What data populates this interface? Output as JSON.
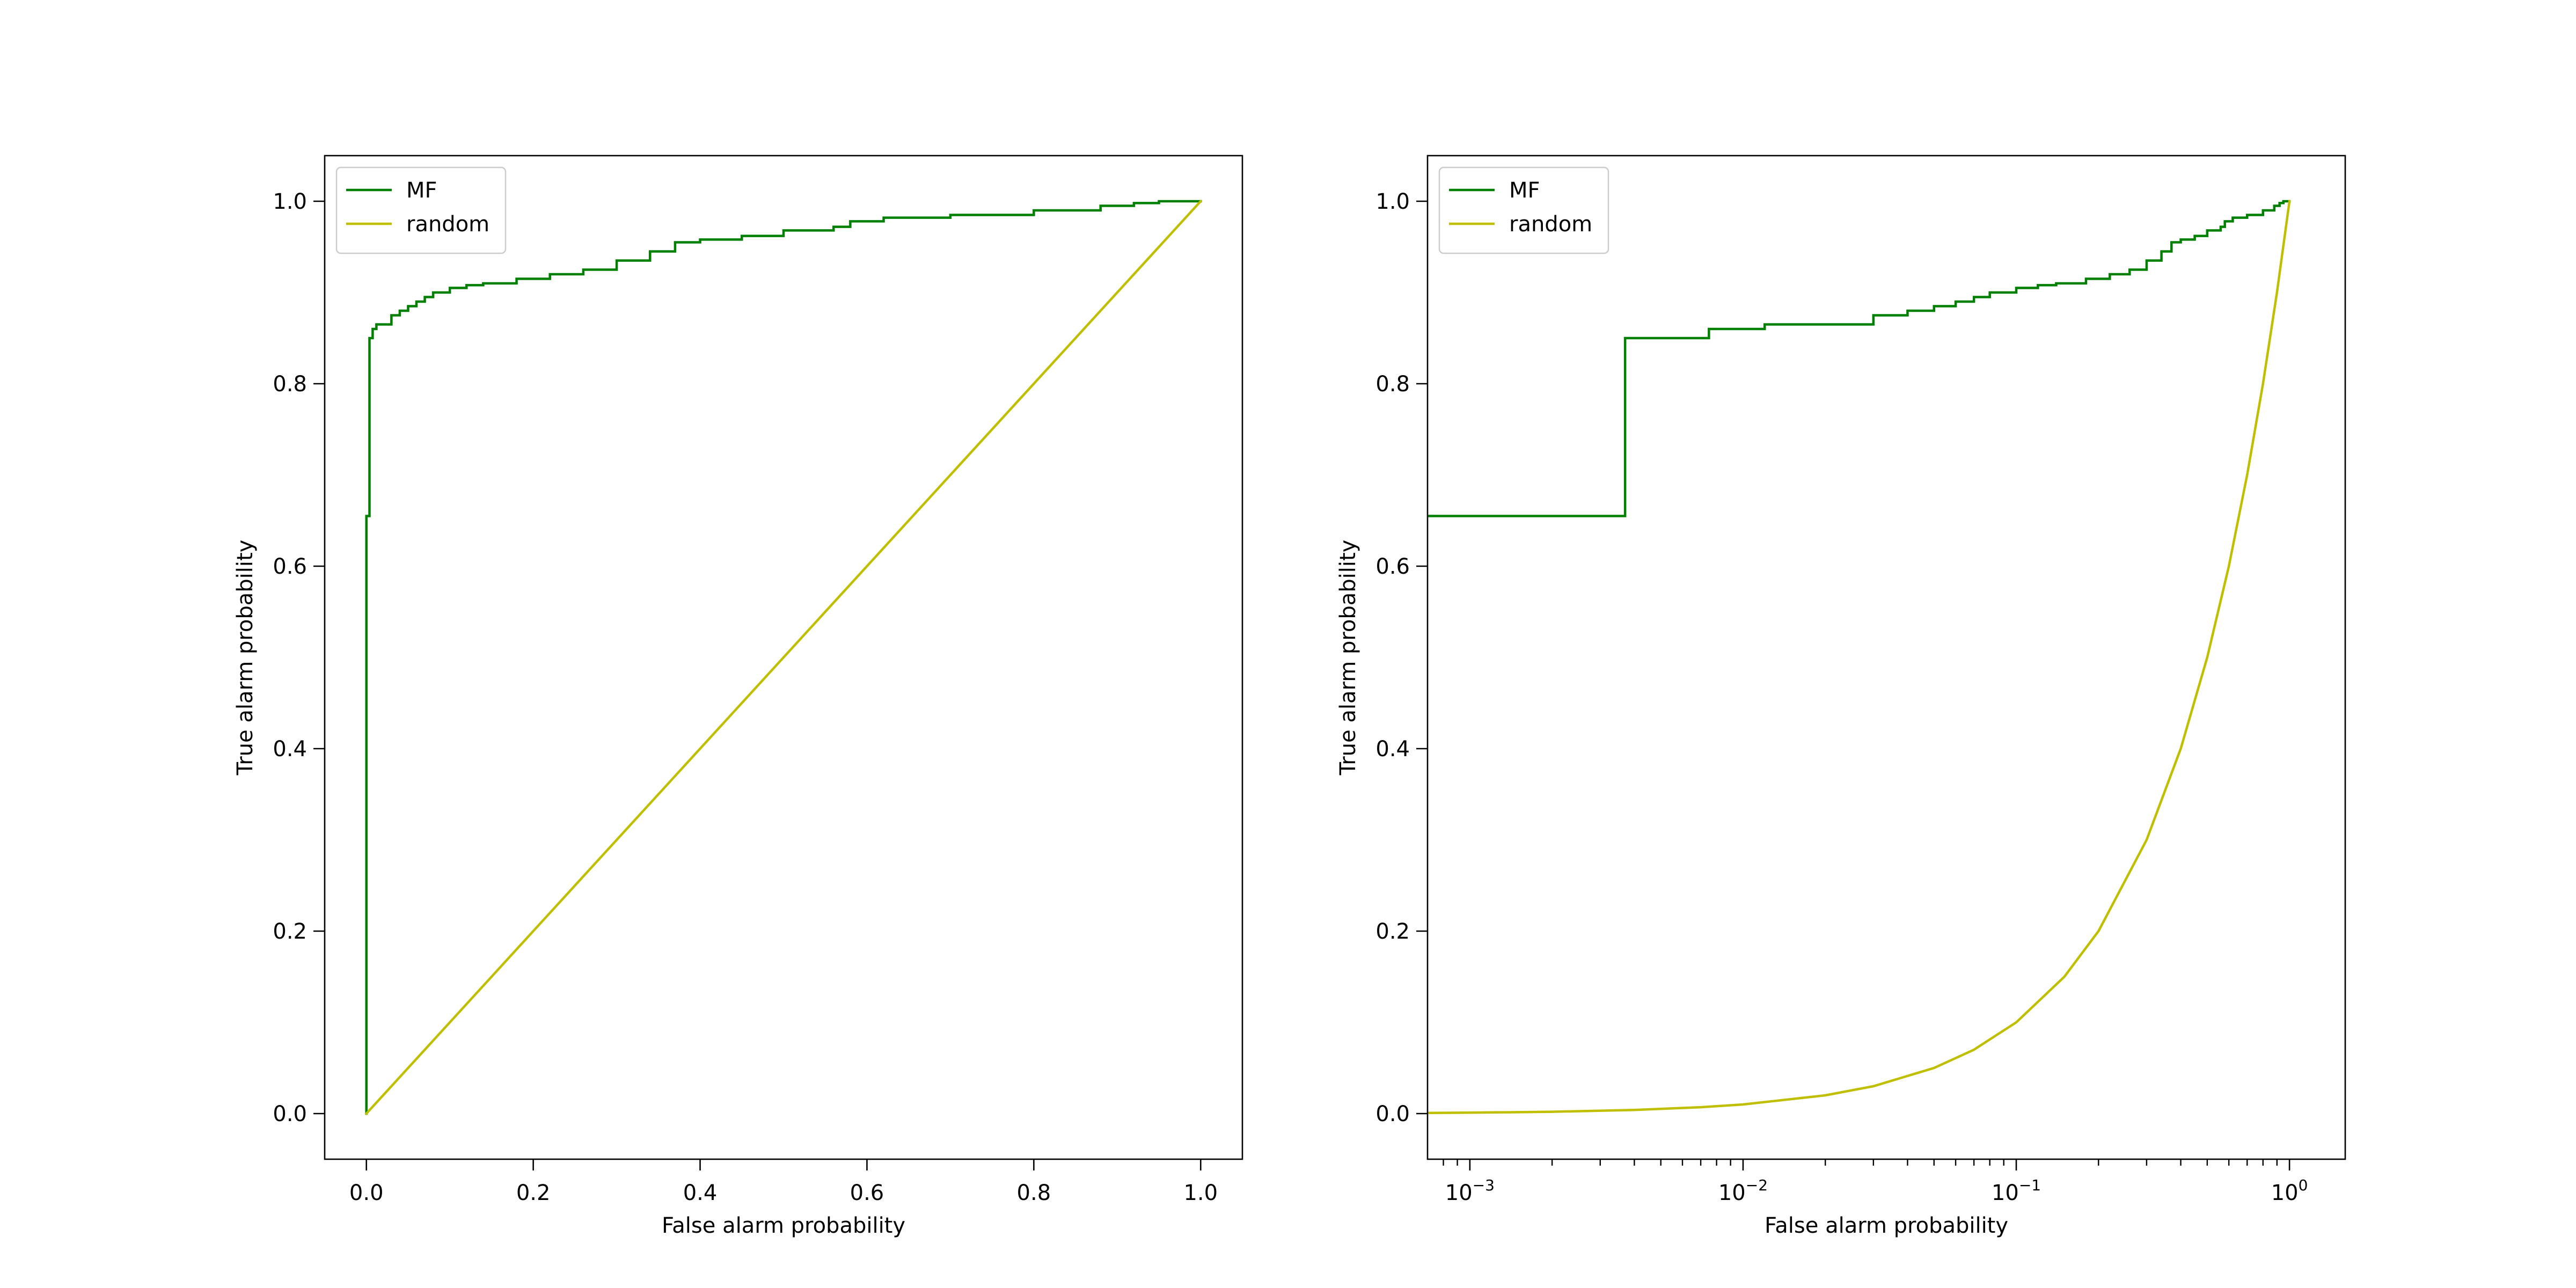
{
  "chart_data": [
    {
      "type": "line",
      "xscale": "linear",
      "xlabel": "False alarm probability",
      "ylabel": "True alarm probability",
      "xlim": [
        -0.05,
        1.05
      ],
      "ylim": [
        -0.05,
        1.05
      ],
      "xticks": [
        0.0,
        0.2,
        0.4,
        0.6,
        0.8,
        1.0
      ],
      "xtick_labels": [
        "0.0",
        "0.2",
        "0.4",
        "0.6",
        "0.8",
        "1.0"
      ],
      "yticks": [
        0.0,
        0.2,
        0.4,
        0.6,
        0.8,
        1.0
      ],
      "ytick_labels": [
        "0.0",
        "0.2",
        "0.4",
        "0.6",
        "0.8",
        "1.0"
      ],
      "grid": false,
      "legend_position": "upper left",
      "series": [
        {
          "name": "MF",
          "color": "#008000",
          "step": true,
          "x": [
            0.0,
            0.0,
            0.0037,
            0.0037,
            0.0075,
            0.0075,
            0.012,
            0.012,
            0.03,
            0.03,
            0.04,
            0.04,
            0.05,
            0.05,
            0.06,
            0.06,
            0.07,
            0.07,
            0.08,
            0.08,
            0.1,
            0.1,
            0.12,
            0.12,
            0.14,
            0.14,
            0.18,
            0.18,
            0.22,
            0.22,
            0.26,
            0.26,
            0.3,
            0.3,
            0.34,
            0.34,
            0.37,
            0.37,
            0.4,
            0.4,
            0.45,
            0.45,
            0.5,
            0.5,
            0.56,
            0.56,
            0.58,
            0.58,
            0.62,
            0.62,
            0.7,
            0.7,
            0.8,
            0.8,
            0.88,
            0.88,
            0.92,
            0.92,
            0.95,
            0.95,
            1.0
          ],
          "y": [
            0.0,
            0.655,
            0.655,
            0.85,
            0.85,
            0.86,
            0.86,
            0.865,
            0.865,
            0.875,
            0.875,
            0.88,
            0.88,
            0.885,
            0.885,
            0.89,
            0.89,
            0.895,
            0.895,
            0.9,
            0.9,
            0.905,
            0.905,
            0.908,
            0.908,
            0.91,
            0.91,
            0.915,
            0.915,
            0.92,
            0.92,
            0.925,
            0.925,
            0.935,
            0.935,
            0.945,
            0.945,
            0.955,
            0.955,
            0.958,
            0.958,
            0.962,
            0.962,
            0.968,
            0.968,
            0.972,
            0.972,
            0.978,
            0.978,
            0.982,
            0.982,
            0.985,
            0.985,
            0.99,
            0.99,
            0.995,
            0.995,
            0.998,
            0.998,
            1.0,
            1.0
          ]
        },
        {
          "name": "random",
          "color": "#bfbf00",
          "step": false,
          "x": [
            0.0,
            1.0
          ],
          "y": [
            0.0,
            1.0
          ]
        }
      ]
    },
    {
      "type": "line",
      "xscale": "log",
      "xlabel": "False alarm probability",
      "ylabel": "True alarm probability",
      "xlim": [
        0.0007,
        1.6
      ],
      "ylim": [
        -0.05,
        1.05
      ],
      "xticks": [
        0.001,
        0.01,
        0.1,
        1.0
      ],
      "xtick_labels": [
        {
          "base": "10",
          "exp": "−3"
        },
        {
          "base": "10",
          "exp": "−2"
        },
        {
          "base": "10",
          "exp": "−1"
        },
        {
          "base": "10",
          "exp": "0"
        }
      ],
      "yticks": [
        0.0,
        0.2,
        0.4,
        0.6,
        0.8,
        1.0
      ],
      "ytick_labels": [
        "0.0",
        "0.2",
        "0.4",
        "0.6",
        "0.8",
        "1.0"
      ],
      "grid": false,
      "legend_position": "upper left",
      "series": [
        {
          "name": "MF",
          "color": "#008000",
          "step": true,
          "x": [
            0.0007,
            0.0037,
            0.0037,
            0.0075,
            0.0075,
            0.012,
            0.012,
            0.03,
            0.03,
            0.04,
            0.04,
            0.05,
            0.05,
            0.06,
            0.06,
            0.07,
            0.07,
            0.08,
            0.08,
            0.1,
            0.1,
            0.12,
            0.12,
            0.14,
            0.14,
            0.18,
            0.18,
            0.22,
            0.22,
            0.26,
            0.26,
            0.3,
            0.3,
            0.34,
            0.34,
            0.37,
            0.37,
            0.4,
            0.4,
            0.45,
            0.45,
            0.5,
            0.5,
            0.56,
            0.56,
            0.58,
            0.58,
            0.62,
            0.62,
            0.7,
            0.7,
            0.8,
            0.8,
            0.88,
            0.88,
            0.92,
            0.92,
            0.95,
            0.95,
            1.0
          ],
          "y": [
            0.655,
            0.655,
            0.85,
            0.85,
            0.86,
            0.86,
            0.865,
            0.865,
            0.875,
            0.875,
            0.88,
            0.88,
            0.885,
            0.885,
            0.89,
            0.89,
            0.895,
            0.895,
            0.9,
            0.9,
            0.905,
            0.905,
            0.908,
            0.908,
            0.91,
            0.91,
            0.915,
            0.915,
            0.92,
            0.92,
            0.925,
            0.925,
            0.935,
            0.935,
            0.945,
            0.945,
            0.955,
            0.955,
            0.958,
            0.958,
            0.962,
            0.962,
            0.968,
            0.968,
            0.972,
            0.972,
            0.978,
            0.978,
            0.982,
            0.982,
            0.985,
            0.985,
            0.99,
            0.99,
            0.995,
            0.995,
            0.998,
            0.998,
            1.0,
            1.0
          ]
        },
        {
          "name": "random",
          "color": "#bfbf00",
          "step": false,
          "x": [
            0.0007,
            0.001,
            0.002,
            0.004,
            0.007,
            0.01,
            0.02,
            0.03,
            0.05,
            0.07,
            0.1,
            0.15,
            0.2,
            0.3,
            0.4,
            0.5,
            0.6,
            0.7,
            0.8,
            0.9,
            1.0
          ],
          "y": [
            0.0007,
            0.001,
            0.002,
            0.004,
            0.007,
            0.01,
            0.02,
            0.03,
            0.05,
            0.07,
            0.1,
            0.15,
            0.2,
            0.3,
            0.4,
            0.5,
            0.6,
            0.7,
            0.8,
            0.9,
            1.0
          ]
        }
      ]
    }
  ]
}
